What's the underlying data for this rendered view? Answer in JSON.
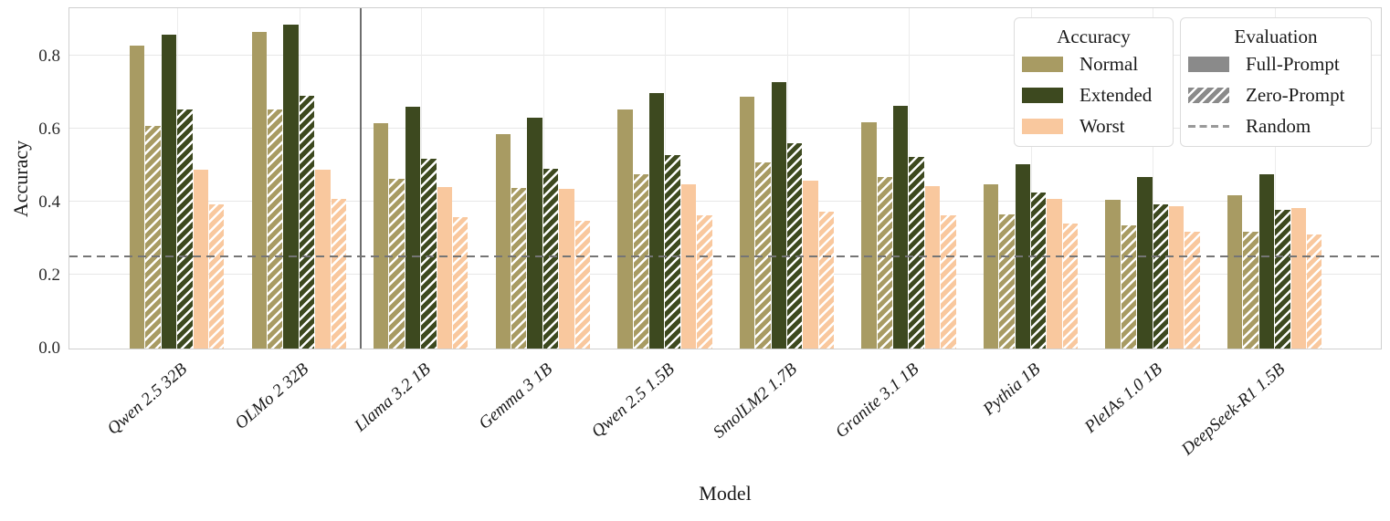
{
  "axes": {
    "y_title": "Accuracy",
    "x_title": "Model",
    "y_ticks": [
      "0.0",
      "0.2",
      "0.4",
      "0.6",
      "0.8"
    ]
  },
  "colors": {
    "normal": "#a89b63",
    "extended": "#3d491f",
    "worst": "#f9c89e",
    "legend_gray": "#8a8a8a",
    "random_line": "#757575",
    "divider": "#6e6e6e",
    "grid": "#e7e7e7"
  },
  "legend_accuracy": {
    "title": "Accuracy",
    "items": [
      {
        "label": "Normal",
        "color": "#a89b63",
        "hatched": false
      },
      {
        "label": "Extended",
        "color": "#3d491f",
        "hatched": false
      },
      {
        "label": "Worst",
        "color": "#f9c89e",
        "hatched": false
      }
    ]
  },
  "legend_evaluation": {
    "title": "Evaluation",
    "items": [
      {
        "label": "Full-Prompt",
        "type": "solid"
      },
      {
        "label": "Zero-Prompt",
        "type": "hatched"
      },
      {
        "label": "Random",
        "type": "dashed"
      }
    ]
  },
  "chart_data": {
    "type": "bar",
    "title": "",
    "xlabel": "Model",
    "ylabel": "Accuracy",
    "ylim": [
      0.0,
      0.94
    ],
    "yticks": [
      0.0,
      0.2,
      0.4,
      0.6,
      0.8
    ],
    "grid": true,
    "legend_position": "upper right",
    "random_baseline": {
      "label": "Random",
      "value": 0.25
    },
    "separator_after_category_index": 1,
    "categories": [
      "Qwen 2.5 32B",
      "OLMo 2 32B",
      "Llama 3.2 1B",
      "Gemma 3 1B",
      "Qwen 2.5 1.5B",
      "SmolLM2 1.7B",
      "Granite 3.1 1B",
      "Pythia 1B",
      "PleIAs 1.0 1B",
      "DeepSeek-R1 1.5B"
    ],
    "series": [
      {
        "accuracy": "Normal",
        "evaluation": "Full-Prompt",
        "hatched": false,
        "color": "#a89b63",
        "values": [
          0.83,
          0.868,
          0.618,
          0.588,
          0.654,
          0.689,
          0.62,
          0.449,
          0.408,
          0.421
        ]
      },
      {
        "accuracy": "Normal",
        "evaluation": "Zero-Prompt",
        "hatched": true,
        "color": "#a89b63",
        "values": [
          0.609,
          0.654,
          0.464,
          0.44,
          0.478,
          0.51,
          0.47,
          0.368,
          0.338,
          0.321
        ]
      },
      {
        "accuracy": "Extended",
        "evaluation": "Full-Prompt",
        "hatched": false,
        "color": "#3d491f",
        "values": [
          0.859,
          0.888,
          0.663,
          0.632,
          0.699,
          0.729,
          0.666,
          0.506,
          0.469,
          0.477
        ]
      },
      {
        "accuracy": "Extended",
        "evaluation": "Zero-Prompt",
        "hatched": true,
        "color": "#3d491f",
        "values": [
          0.654,
          0.692,
          0.519,
          0.492,
          0.531,
          0.563,
          0.524,
          0.427,
          0.396,
          0.379
        ]
      },
      {
        "accuracy": "Worst",
        "evaluation": "Full-Prompt",
        "hatched": false,
        "color": "#f9c89e",
        "values": [
          0.49,
          0.49,
          0.442,
          0.438,
          0.45,
          0.459,
          0.444,
          0.411,
          0.389,
          0.386
        ]
      },
      {
        "accuracy": "Worst",
        "evaluation": "Zero-Prompt",
        "hatched": true,
        "color": "#f9c89e",
        "values": [
          0.394,
          0.411,
          0.359,
          0.35,
          0.365,
          0.375,
          0.365,
          0.343,
          0.321,
          0.313
        ]
      }
    ]
  }
}
